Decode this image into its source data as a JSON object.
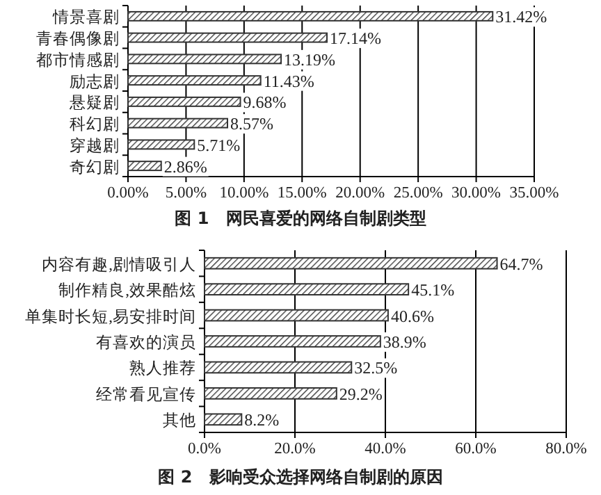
{
  "chart_data": [
    {
      "type": "bar",
      "orientation": "horizontal",
      "title": "图 1　网民喜爱的网络自制剧类型",
      "categories": [
        "情景喜剧",
        "青春偶像剧",
        "都市情感剧",
        "励志剧",
        "悬疑剧",
        "科幻剧",
        "穿越剧",
        "奇幻剧"
      ],
      "values": [
        31.42,
        17.14,
        13.19,
        11.43,
        9.68,
        8.57,
        5.71,
        2.86
      ],
      "value_labels": [
        "31.42%",
        "17.14%",
        "13.19%",
        "11.43%",
        "9.68%",
        "8.57%",
        "5.71%",
        "2.86%"
      ],
      "color": "#333333",
      "xlim": [
        0,
        35
      ],
      "xticks": [
        {
          "value": 0,
          "label": "0.00%"
        },
        {
          "value": 5,
          "label": "5.00%"
        },
        {
          "value": 10,
          "label": "10.00%"
        },
        {
          "value": 15,
          "label": "15.00%"
        },
        {
          "value": 20,
          "label": "20.00%"
        },
        {
          "value": 25,
          "label": "25.00%"
        },
        {
          "value": 30,
          "label": "30.00%"
        },
        {
          "value": 35,
          "label": "35.00%"
        }
      ],
      "grid": "x"
    },
    {
      "type": "bar",
      "orientation": "horizontal",
      "title": "图 2　影响受众选择网络自制剧的原因",
      "categories": [
        "内容有趣,剧情吸引人",
        "制作精良,效果酷炫",
        "单集时长短,易安排时间",
        "有喜欢的演员",
        "熟人推荐",
        "经常看见宣传",
        "其他"
      ],
      "values": [
        64.7,
        45.1,
        40.6,
        38.9,
        32.5,
        29.2,
        8.2
      ],
      "value_labels": [
        "64.7%",
        "45.1%",
        "40.6%",
        "38.9%",
        "32.5%",
        "29.2%",
        "8.2%"
      ],
      "color": "#333333",
      "xlim": [
        0,
        80
      ],
      "xticks": [
        {
          "value": 0,
          "label": "0.0%"
        },
        {
          "value": 20,
          "label": "20.0%"
        },
        {
          "value": 40,
          "label": "40.0%"
        },
        {
          "value": 60,
          "label": "60.0%"
        },
        {
          "value": 80,
          "label": "80.0%"
        }
      ],
      "grid": "x"
    }
  ]
}
